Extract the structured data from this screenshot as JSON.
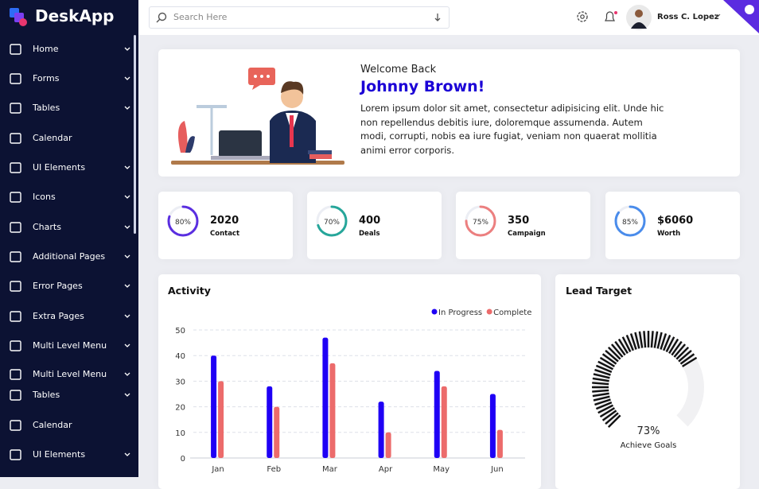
{
  "sidebar": {
    "logo": "DeskApp",
    "items": [
      {
        "label": "Home",
        "chevron": true
      },
      {
        "label": "Forms",
        "chevron": true
      },
      {
        "label": "Tables",
        "chevron": true
      },
      {
        "label": "Calendar",
        "chevron": false
      },
      {
        "label": "UI Elements",
        "chevron": true
      },
      {
        "label": "Icons",
        "chevron": true
      },
      {
        "label": "Charts",
        "chevron": true
      },
      {
        "label": "Additional Pages",
        "chevron": true
      },
      {
        "label": "Error Pages",
        "chevron": true
      },
      {
        "label": "Extra Pages",
        "chevron": true
      },
      {
        "label": "Multi Level Menu",
        "chevron": true
      },
      {
        "label": "Multi Level Menu",
        "chevron": true
      },
      {
        "label": "Tables",
        "chevron": true
      },
      {
        "label": "Calendar",
        "chevron": false
      },
      {
        "label": "UI Elements",
        "chevron": true
      }
    ]
  },
  "header": {
    "search_placeholder": "Search Here",
    "user_name": "Ross C. Lopez"
  },
  "welcome": {
    "greeting": "Welcome Back",
    "name": "Johnny Brown!",
    "text": "Lorem ipsum dolor sit amet, consectetur adipisicing elit. Unde hic non repellendus debitis iure, doloremque assumenda. Autem modi, corrupti, nobis ea iure fugiat, veniam non quaerat mollitia animi error corporis."
  },
  "stats": {
    "range": [
      0,
      100
    ],
    "cards": [
      {
        "percent": 80,
        "percent_label": "80%",
        "value": "2020",
        "label": "Contact",
        "color": "#5a2ee0"
      },
      {
        "percent": 70,
        "percent_label": "70%",
        "value": "400",
        "label": "Deals",
        "color": "#26a69a"
      },
      {
        "percent": 75,
        "percent_label": "75%",
        "value": "350",
        "label": "Campaign",
        "color": "#ec7f7f"
      },
      {
        "percent": 85,
        "percent_label": "85%",
        "value": "$6060",
        "label": "Worth",
        "color": "#4a8ceb"
      }
    ]
  },
  "chart_data": [
    {
      "type": "bar",
      "title": "Activity",
      "categories": [
        "Jan",
        "Feb",
        "Mar",
        "Apr",
        "May",
        "Jun"
      ],
      "series": [
        {
          "name": "In Progress",
          "color": "#1f00f5",
          "values": [
            40,
            28,
            47,
            22,
            34,
            25
          ]
        },
        {
          "name": "Complete",
          "color": "#ec6b6b",
          "values": [
            30,
            20,
            37,
            10,
            28,
            11
          ]
        }
      ],
      "ylim": [
        0,
        50
      ],
      "yticks": [
        0,
        10,
        20,
        30,
        40,
        50
      ],
      "grid": true,
      "legend": "top-right"
    },
    {
      "type": "gauge",
      "title": "Lead Target",
      "value": 73,
      "value_label": "73%",
      "caption": "Achieve Goals",
      "range": [
        0,
        100
      ]
    }
  ]
}
